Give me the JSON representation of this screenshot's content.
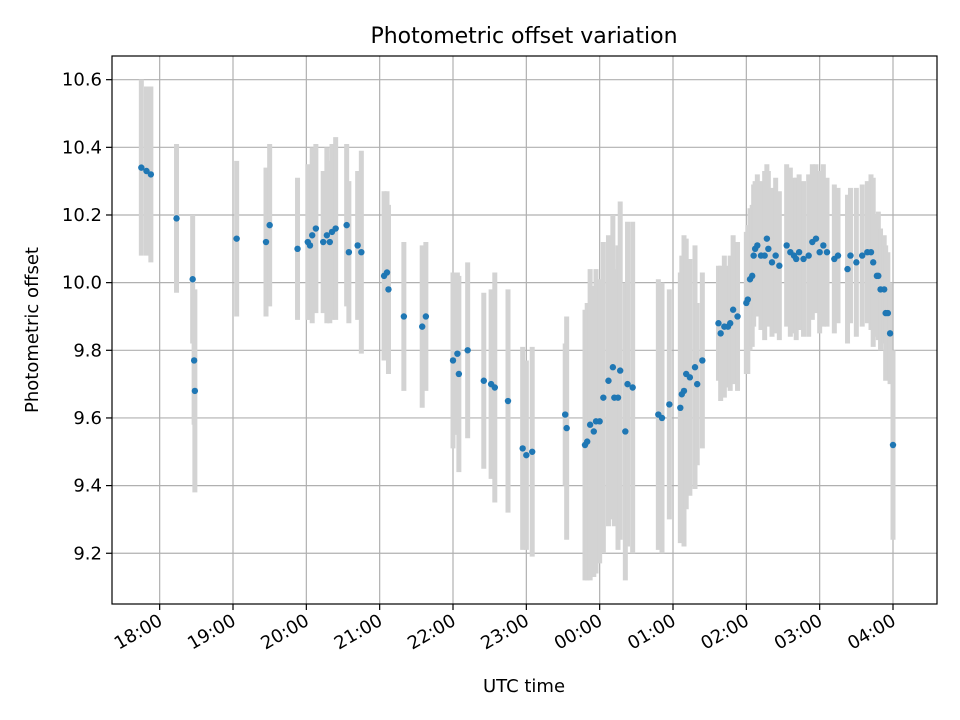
{
  "chart_data": {
    "type": "scatter",
    "title": "Photometric offset variation",
    "xlabel": "UTC time",
    "ylabel": "Photometric offset",
    "xlim_hours": [
      17.35,
      28.6
    ],
    "ylim": [
      9.05,
      10.67
    ],
    "grid": true,
    "x_ticks": [
      {
        "h": 18,
        "label": "18:00"
      },
      {
        "h": 19,
        "label": "19:00"
      },
      {
        "h": 20,
        "label": "20:00"
      },
      {
        "h": 21,
        "label": "21:00"
      },
      {
        "h": 22,
        "label": "22:00"
      },
      {
        "h": 23,
        "label": "23:00"
      },
      {
        "h": 24,
        "label": "00:00"
      },
      {
        "h": 25,
        "label": "01:00"
      },
      {
        "h": 26,
        "label": "02:00"
      },
      {
        "h": 27,
        "label": "03:00"
      },
      {
        "h": 28,
        "label": "04:00"
      }
    ],
    "y_ticks": [
      {
        "v": 9.2,
        "label": "9.2"
      },
      {
        "v": 9.4,
        "label": "9.4"
      },
      {
        "v": 9.6,
        "label": "9.6"
      },
      {
        "v": 9.8,
        "label": "9.8"
      },
      {
        "v": 10.0,
        "label": "10.0"
      },
      {
        "v": 10.2,
        "label": "10.2"
      },
      {
        "v": 10.4,
        "label": "10.4"
      },
      {
        "v": 10.6,
        "label": "10.6"
      }
    ],
    "colors": {
      "point": "#1f77b4",
      "errorbar": "#d3d3d3",
      "grid": "#b0b0b0"
    },
    "points": [
      [
        17.75,
        10.34,
        0.26
      ],
      [
        17.82,
        10.33,
        0.25
      ],
      [
        17.88,
        10.32,
        0.26
      ],
      [
        18.23,
        10.19,
        0.22
      ],
      [
        18.45,
        10.01,
        0.19
      ],
      [
        18.47,
        9.77,
        0.19
      ],
      [
        18.48,
        9.68,
        0.3
      ],
      [
        19.05,
        10.13,
        0.23
      ],
      [
        19.45,
        10.12,
        0.22
      ],
      [
        19.5,
        10.17,
        0.24
      ],
      [
        19.88,
        10.1,
        0.21
      ],
      [
        20.02,
        10.12,
        0.23
      ],
      [
        20.05,
        10.11,
        0.22
      ],
      [
        20.08,
        10.14,
        0.26
      ],
      [
        20.13,
        10.16,
        0.25
      ],
      [
        20.23,
        10.12,
        0.21
      ],
      [
        20.28,
        10.14,
        0.26
      ],
      [
        20.32,
        10.12,
        0.24
      ],
      [
        20.35,
        10.15,
        0.26
      ],
      [
        20.4,
        10.16,
        0.27
      ],
      [
        20.55,
        10.17,
        0.24
      ],
      [
        20.58,
        10.09,
        0.21
      ],
      [
        20.7,
        10.11,
        0.22
      ],
      [
        20.75,
        10.09,
        0.3
      ],
      [
        21.06,
        10.02,
        0.25
      ],
      [
        21.1,
        10.03,
        0.24
      ],
      [
        21.12,
        9.98,
        0.25
      ],
      [
        21.33,
        9.9,
        0.22
      ],
      [
        21.58,
        9.87,
        0.24
      ],
      [
        21.63,
        9.9,
        0.22
      ],
      [
        22.0,
        9.77,
        0.26
      ],
      [
        22.06,
        9.79,
        0.24
      ],
      [
        22.08,
        9.73,
        0.29
      ],
      [
        22.2,
        9.8,
        0.26
      ],
      [
        22.42,
        9.71,
        0.26
      ],
      [
        22.52,
        9.7,
        0.28
      ],
      [
        22.57,
        9.69,
        0.34
      ],
      [
        22.75,
        9.65,
        0.33
      ],
      [
        22.95,
        9.51,
        0.3
      ],
      [
        23.0,
        9.49,
        0.28
      ],
      [
        23.08,
        9.5,
        0.31
      ],
      [
        23.53,
        9.61,
        0.21
      ],
      [
        23.55,
        9.57,
        0.33
      ],
      [
        23.8,
        9.52,
        0.4
      ],
      [
        23.83,
        9.53,
        0.41
      ],
      [
        23.87,
        9.58,
        0.46
      ],
      [
        23.92,
        9.56,
        0.43
      ],
      [
        23.95,
        9.59,
        0.45
      ],
      [
        24.0,
        9.59,
        0.42
      ],
      [
        24.05,
        9.66,
        0.46
      ],
      [
        24.12,
        9.71,
        0.43
      ],
      [
        24.18,
        9.75,
        0.45
      ],
      [
        24.2,
        9.66,
        0.38
      ],
      [
        24.25,
        9.66,
        0.45
      ],
      [
        24.28,
        9.74,
        0.5
      ],
      [
        24.35,
        9.56,
        0.44
      ],
      [
        24.38,
        9.7,
        0.48
      ],
      [
        24.45,
        9.69,
        0.49
      ],
      [
        24.8,
        9.61,
        0.4
      ],
      [
        24.85,
        9.6,
        0.4
      ],
      [
        24.95,
        9.64,
        0.34
      ],
      [
        25.1,
        9.63,
        0.4
      ],
      [
        25.12,
        9.67,
        0.41
      ],
      [
        25.15,
        9.68,
        0.46
      ],
      [
        25.18,
        9.73,
        0.4
      ],
      [
        25.23,
        9.72,
        0.35
      ],
      [
        25.3,
        9.75,
        0.36
      ],
      [
        25.33,
        9.7,
        0.24
      ],
      [
        25.4,
        9.77,
        0.26
      ],
      [
        25.62,
        9.88,
        0.17
      ],
      [
        25.65,
        9.85,
        0.2
      ],
      [
        25.7,
        9.87,
        0.21
      ],
      [
        25.75,
        9.87,
        0.18
      ],
      [
        25.78,
        9.88,
        0.2
      ],
      [
        25.82,
        9.92,
        0.22
      ],
      [
        25.88,
        9.9,
        0.22
      ],
      [
        26.0,
        9.94,
        0.21
      ],
      [
        26.02,
        9.95,
        0.22
      ],
      [
        26.05,
        10.01,
        0.21
      ],
      [
        26.08,
        10.02,
        0.21
      ],
      [
        26.1,
        10.08,
        0.21
      ],
      [
        26.12,
        10.1,
        0.2
      ],
      [
        26.15,
        10.11,
        0.21
      ],
      [
        26.2,
        10.08,
        0.22
      ],
      [
        26.25,
        10.08,
        0.25
      ],
      [
        26.28,
        10.13,
        0.22
      ],
      [
        26.3,
        10.1,
        0.23
      ],
      [
        26.35,
        10.06,
        0.22
      ],
      [
        26.4,
        10.08,
        0.23
      ],
      [
        26.45,
        10.05,
        0.22
      ],
      [
        26.55,
        10.11,
        0.24
      ],
      [
        26.6,
        10.09,
        0.25
      ],
      [
        26.65,
        10.08,
        0.23
      ],
      [
        26.68,
        10.07,
        0.24
      ],
      [
        26.72,
        10.09,
        0.23
      ],
      [
        26.78,
        10.07,
        0.23
      ],
      [
        26.85,
        10.08,
        0.24
      ],
      [
        26.9,
        10.12,
        0.23
      ],
      [
        26.95,
        10.13,
        0.22
      ],
      [
        27.0,
        10.09,
        0.24
      ],
      [
        27.05,
        10.11,
        0.24
      ],
      [
        27.1,
        10.09,
        0.22
      ],
      [
        27.2,
        10.07,
        0.22
      ],
      [
        27.25,
        10.08,
        0.2
      ],
      [
        27.38,
        10.04,
        0.22
      ],
      [
        27.42,
        10.08,
        0.2
      ],
      [
        27.5,
        10.06,
        0.22
      ],
      [
        27.58,
        10.08,
        0.21
      ],
      [
        27.65,
        10.09,
        0.21
      ],
      [
        27.7,
        10.09,
        0.23
      ],
      [
        27.73,
        10.06,
        0.25
      ],
      [
        27.78,
        10.02,
        0.18
      ],
      [
        27.8,
        10.02,
        0.19
      ],
      [
        27.83,
        9.98,
        0.18
      ],
      [
        27.88,
        9.98,
        0.16
      ],
      [
        27.9,
        9.91,
        0.2
      ],
      [
        27.93,
        9.91,
        0.18
      ],
      [
        27.96,
        9.85,
        0.15
      ],
      [
        28.0,
        9.52,
        0.28
      ]
    ]
  }
}
